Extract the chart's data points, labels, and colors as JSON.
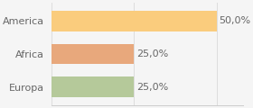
{
  "categories": [
    "America",
    "Africa",
    "Europa"
  ],
  "values": [
    50.0,
    25.0,
    25.0
  ],
  "bar_colors": [
    "#FACC7D",
    "#E8A87C",
    "#B5C99A"
  ],
  "decimal_sep": ",",
  "xlim": [
    0,
    58
  ],
  "background_color": "#f5f5f5",
  "bar_height": 0.62,
  "label_fontsize": 8,
  "tick_fontsize": 8,
  "grid_xticks": [
    0,
    25,
    50
  ],
  "grid_color": "#dddddd",
  "text_color": "#666666"
}
